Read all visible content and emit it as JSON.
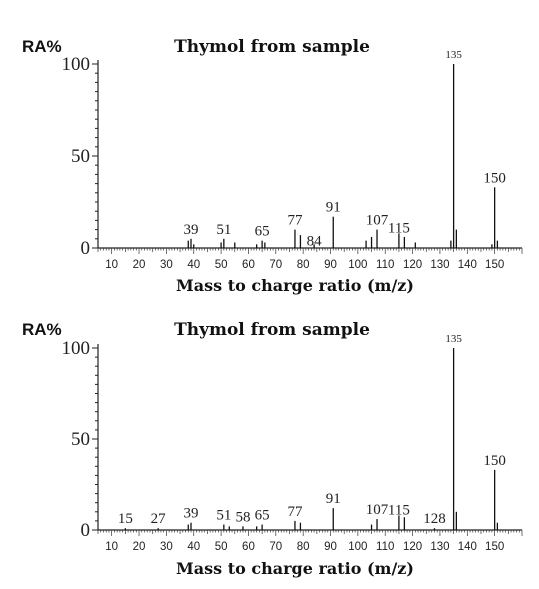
{
  "chart_data": [
    {
      "type": "bar",
      "title": "Thymol from sample",
      "ylabel": "RA%",
      "xlabel": "Mass to charge ratio (m/z)",
      "xlim": [
        5,
        160
      ],
      "ylim": [
        0,
        100
      ],
      "yticks": [
        0,
        50,
        100
      ],
      "xticks": [
        10,
        20,
        30,
        40,
        50,
        60,
        70,
        80,
        90,
        100,
        110,
        120,
        130,
        140,
        150
      ],
      "peaks": [
        {
          "mz": 38,
          "ra": 4
        },
        {
          "mz": 39,
          "ra": 5
        },
        {
          "mz": 40,
          "ra": 2
        },
        {
          "mz": 50,
          "ra": 3
        },
        {
          "mz": 51,
          "ra": 5
        },
        {
          "mz": 55,
          "ra": 3
        },
        {
          "mz": 63,
          "ra": 2
        },
        {
          "mz": 65,
          "ra": 4
        },
        {
          "mz": 66,
          "ra": 3
        },
        {
          "mz": 77,
          "ra": 10
        },
        {
          "mz": 79,
          "ra": 7
        },
        {
          "mz": 84,
          "ra": 2
        },
        {
          "mz": 91,
          "ra": 17
        },
        {
          "mz": 103,
          "ra": 4
        },
        {
          "mz": 105,
          "ra": 6
        },
        {
          "mz": 107,
          "ra": 10
        },
        {
          "mz": 115,
          "ra": 8
        },
        {
          "mz": 117,
          "ra": 6
        },
        {
          "mz": 121,
          "ra": 3
        },
        {
          "mz": 134,
          "ra": 4
        },
        {
          "mz": 135,
          "ra": 100
        },
        {
          "mz": 136,
          "ra": 10
        },
        {
          "mz": 149,
          "ra": 2
        },
        {
          "mz": 150,
          "ra": 33
        },
        {
          "mz": 151,
          "ra": 4
        }
      ],
      "labels": [
        {
          "mz": 39,
          "text": "39",
          "ra": 5
        },
        {
          "mz": 51,
          "text": "51",
          "ra": 5
        },
        {
          "mz": 65,
          "text": "65",
          "ra": 4
        },
        {
          "mz": 77,
          "text": "77",
          "ra": 10
        },
        {
          "mz": 84,
          "text": "84",
          "ra": 2
        },
        {
          "mz": 91,
          "text": "91",
          "ra": 17
        },
        {
          "mz": 107,
          "text": "107",
          "ra": 10
        },
        {
          "mz": 115,
          "text": "115",
          "ra": 8
        },
        {
          "mz": 135,
          "text": "135",
          "ra": 100
        },
        {
          "mz": 150,
          "text": "150",
          "ra": 33
        }
      ]
    },
    {
      "type": "bar",
      "title": "Thymol from sample",
      "ylabel": "RA%",
      "xlabel": "Mass to charge ratio (m/z)",
      "xlim": [
        5,
        160
      ],
      "ylim": [
        0,
        100
      ],
      "yticks": [
        0,
        50,
        100
      ],
      "xticks": [
        10,
        20,
        30,
        40,
        50,
        60,
        70,
        80,
        90,
        100,
        110,
        120,
        130,
        140,
        150
      ],
      "peaks": [
        {
          "mz": 15,
          "ra": 1
        },
        {
          "mz": 27,
          "ra": 1
        },
        {
          "mz": 38,
          "ra": 3
        },
        {
          "mz": 39,
          "ra": 4
        },
        {
          "mz": 51,
          "ra": 3
        },
        {
          "mz": 53,
          "ra": 2
        },
        {
          "mz": 58,
          "ra": 2
        },
        {
          "mz": 63,
          "ra": 2
        },
        {
          "mz": 65,
          "ra": 3
        },
        {
          "mz": 77,
          "ra": 5
        },
        {
          "mz": 79,
          "ra": 4
        },
        {
          "mz": 91,
          "ra": 12
        },
        {
          "mz": 105,
          "ra": 3
        },
        {
          "mz": 107,
          "ra": 6
        },
        {
          "mz": 115,
          "ra": 8
        },
        {
          "mz": 117,
          "ra": 7
        },
        {
          "mz": 128,
          "ra": 1
        },
        {
          "mz": 135,
          "ra": 100
        },
        {
          "mz": 136,
          "ra": 10
        },
        {
          "mz": 150,
          "ra": 33
        },
        {
          "mz": 151,
          "ra": 4
        }
      ],
      "labels": [
        {
          "mz": 15,
          "text": "15",
          "ra": 1
        },
        {
          "mz": 27,
          "text": "27",
          "ra": 1
        },
        {
          "mz": 39,
          "text": "39",
          "ra": 4
        },
        {
          "mz": 51,
          "text": "51",
          "ra": 3
        },
        {
          "mz": 58,
          "text": "58",
          "ra": 2
        },
        {
          "mz": 65,
          "text": "65",
          "ra": 3
        },
        {
          "mz": 77,
          "text": "77",
          "ra": 5
        },
        {
          "mz": 91,
          "text": "91",
          "ra": 12
        },
        {
          "mz": 107,
          "text": "107",
          "ra": 6
        },
        {
          "mz": 115,
          "text": "115",
          "ra": 8
        },
        {
          "mz": 128,
          "text": "128",
          "ra": 1
        },
        {
          "mz": 135,
          "text": "135",
          "ra": 100
        },
        {
          "mz": 150,
          "text": "150",
          "ra": 33
        }
      ]
    }
  ]
}
